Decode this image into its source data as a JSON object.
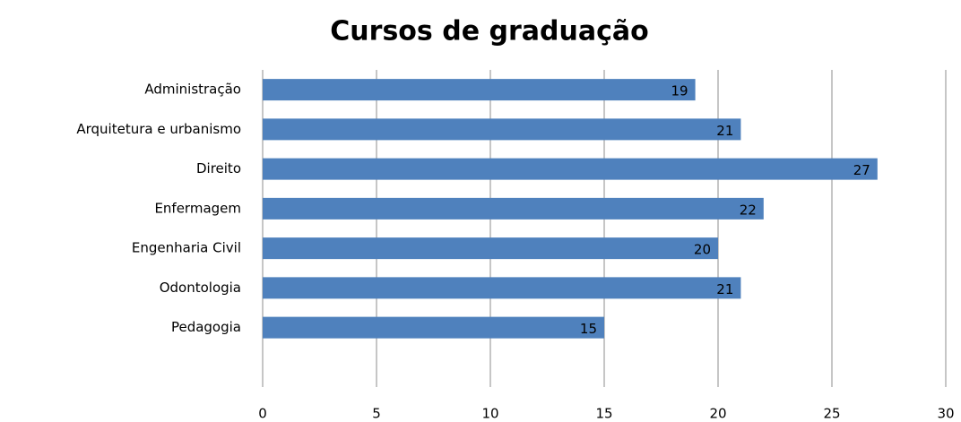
{
  "chart_data": {
    "type": "bar",
    "orientation": "horizontal",
    "title": "Cursos de graduação",
    "categories": [
      "Administração",
      "Arquitetura e urbanismo",
      "Direito",
      "Enfermagem",
      "Engenharia Civil",
      "Odontologia",
      "Pedagogia",
      null
    ],
    "values": [
      19,
      21,
      27,
      22,
      20,
      21,
      15,
      null
    ],
    "color": "#4f81bd",
    "xlim": [
      0,
      30
    ],
    "xticks": [
      0,
      5,
      10,
      15,
      20,
      25,
      30
    ],
    "grid": true
  }
}
